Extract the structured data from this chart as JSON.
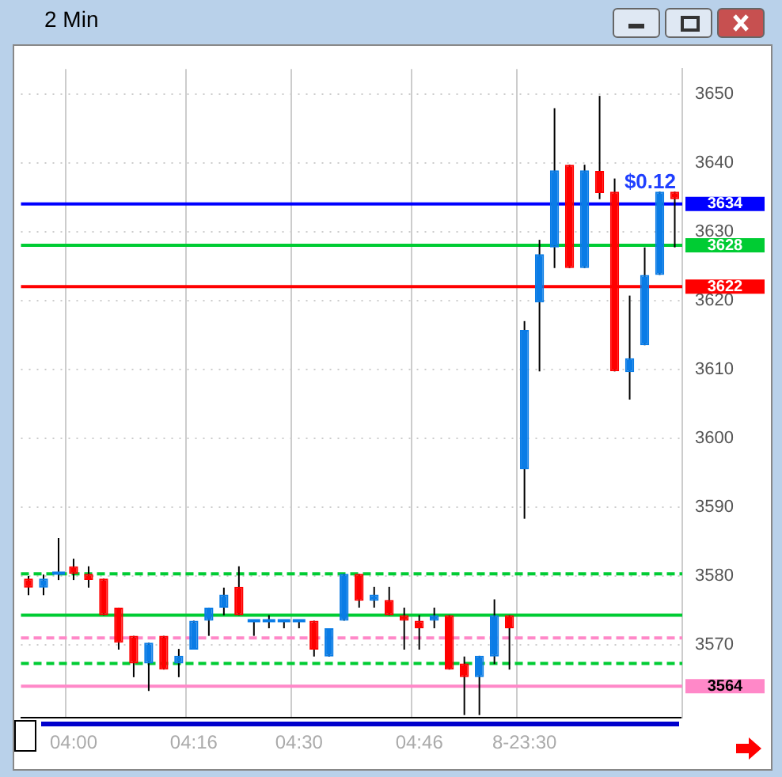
{
  "chart_data": {
    "type": "candlestick",
    "title": "2 Min",
    "categories": [
      null,
      null,
      null,
      "04:00",
      null,
      null,
      null,
      null,
      null,
      null,
      null,
      "04:16",
      null,
      null,
      null,
      null,
      null,
      null,
      "04:30",
      null,
      null,
      null,
      null,
      null,
      null,
      null,
      "04:46",
      null,
      null,
      null,
      null,
      null,
      null,
      "8-23:30",
      null,
      null,
      null,
      null,
      null,
      null,
      null,
      null,
      null,
      null
    ],
    "ohlc": [
      [
        3579.6,
        3580,
        3577.2,
        3578.3
      ],
      [
        3578.3,
        3580.2,
        3577.2,
        3579.6
      ],
      [
        3580.4,
        3585.5,
        3579.4,
        3580.4
      ],
      [
        3581.4,
        3582.5,
        3579.4,
        3580.3
      ],
      [
        3580.3,
        3581.4,
        3578.3,
        3579.4
      ],
      [
        3579.6,
        3579.6,
        3574.3,
        3574.3
      ],
      [
        3575.4,
        3575.4,
        3569.3,
        3570.3
      ],
      [
        3571.3,
        3571.3,
        3565.3,
        3567.3
      ],
      [
        3567.3,
        3570.3,
        3563.3,
        3570.3
      ],
      [
        3571.3,
        3571.3,
        3566.4,
        3566.4
      ],
      [
        3567.3,
        3569.4,
        3565.3,
        3568.4
      ],
      [
        3569.3,
        3573.5,
        3569.3,
        3573.5
      ],
      [
        3573.5,
        3575.4,
        3571.3,
        3575.4
      ],
      [
        3575.4,
        3578.3,
        3574.3,
        3577.3
      ],
      [
        3578.4,
        3581.4,
        3574.3,
        3574.3
      ],
      [
        3573.5,
        3573.5,
        3571.3,
        3573.5
      ],
      [
        3573.5,
        3574.3,
        3572.4,
        3573.5
      ],
      [
        3573.5,
        3573.5,
        3572.4,
        3573.5
      ],
      [
        3573.5,
        3573.5,
        3572.4,
        3573.5
      ],
      [
        3573.5,
        3573.5,
        3568.3,
        3569.3
      ],
      [
        3568.3,
        3572.4,
        3568.3,
        3572.4
      ],
      [
        3573.5,
        3580.3,
        3573.5,
        3580.3
      ],
      [
        3580.3,
        3580.3,
        3575.4,
        3576.4
      ],
      [
        3576.4,
        3578.4,
        3575.4,
        3577.3
      ],
      [
        3576.5,
        3578.4,
        3574.3,
        3574.3
      ],
      [
        3574.3,
        3575.4,
        3569.3,
        3573.5
      ],
      [
        3573.5,
        3574.3,
        3569.3,
        3572.4
      ],
      [
        3573.5,
        3575.4,
        3572.4,
        3574.3
      ],
      [
        3574.3,
        3574.3,
        3566.4,
        3566.4
      ],
      [
        3567.3,
        3568.3,
        3559.8,
        3565.3
      ],
      [
        3565.3,
        3568.4,
        3559.8,
        3568.4
      ],
      [
        3568.3,
        3576.6,
        3567.2,
        3574.3
      ],
      [
        3574.3,
        3574.3,
        3566.4,
        3572.4
      ],
      [
        3595.5,
        3617,
        3588.3,
        3615.7
      ],
      [
        3619.7,
        3628.8,
        3609.7,
        3626.7
      ],
      [
        3627.7,
        3647.9,
        3624.7,
        3638.9
      ],
      [
        3639.7,
        3639.7,
        3624.7,
        3624.7
      ],
      [
        3624.7,
        3639.7,
        3624.7,
        3638.9
      ],
      [
        3638.8,
        3649.7,
        3634.7,
        3635.6
      ],
      [
        3635.8,
        3637.7,
        3609.7,
        3609.7
      ],
      [
        3609.6,
        3620.7,
        3605.6,
        3611.6
      ],
      [
        3613.5,
        3627.7,
        3613.5,
        3623.7
      ],
      [
        3623.7,
        3635.8,
        3623.7,
        3635.8
      ],
      [
        3635.8,
        3635.8,
        3627.7,
        3634.7
      ]
    ],
    "colors": [
      "#ff0000",
      "#0a7ce6",
      "#0a7ce6",
      "#ff0000",
      "#ff0000",
      "#ff0000",
      "#ff0000",
      "#ff0000",
      "#0a7ce6",
      "#ff0000",
      "#0a7ce6",
      "#0a7ce6",
      "#0a7ce6",
      "#0a7ce6",
      "#ff0000",
      "#0a7ce6",
      "#0a7ce6",
      "#0a7ce6",
      "#0a7ce6",
      "#ff0000",
      "#0a7ce6",
      "#0a7ce6",
      "#ff0000",
      "#0a7ce6",
      "#ff0000",
      "#ff0000",
      "#ff0000",
      "#0a7ce6",
      "#ff0000",
      "#ff0000",
      "#0a7ce6",
      "#0a7ce6",
      "#ff0000",
      "#0a7ce6",
      "#0a7ce6",
      "#0a7ce6",
      "#ff0000",
      "#0a7ce6",
      "#ff0000",
      "#ff0000",
      "#0a7ce6",
      "#0a7ce6",
      "#0a7ce6",
      "#ff0000"
    ],
    "ylim": [
      3559.4,
      3653.6
    ],
    "yticks": [
      3570,
      3580,
      3590,
      3600,
      3610,
      3620,
      3630,
      3640,
      3650
    ],
    "grid": true,
    "ref_lines": [
      {
        "axis": "y",
        "value": 3574.3,
        "color": "#00cc33"
      },
      {
        "axis": "y",
        "value": 3580.3,
        "color": "#00cc33",
        "line_style": "dashed"
      },
      {
        "axis": "y",
        "value": 3567.3,
        "color": "#00cc33",
        "line_style": "dashed"
      },
      {
        "axis": "y",
        "value": 3571,
        "color": "#ff88c8",
        "line_style": "dashed"
      },
      {
        "axis": "y",
        "value": 3634,
        "label": "3634",
        "color": "#0000ff"
      },
      {
        "axis": "y",
        "value": 3628,
        "label": "3628",
        "color": "#00cc33"
      },
      {
        "axis": "y",
        "value": 3622,
        "label": "3622",
        "color": "#ff0000"
      },
      {
        "axis": "y",
        "value": 3564,
        "label": "3564",
        "color": "#ff88c8"
      }
    ],
    "annotations": [
      "$0.12"
    ]
  }
}
